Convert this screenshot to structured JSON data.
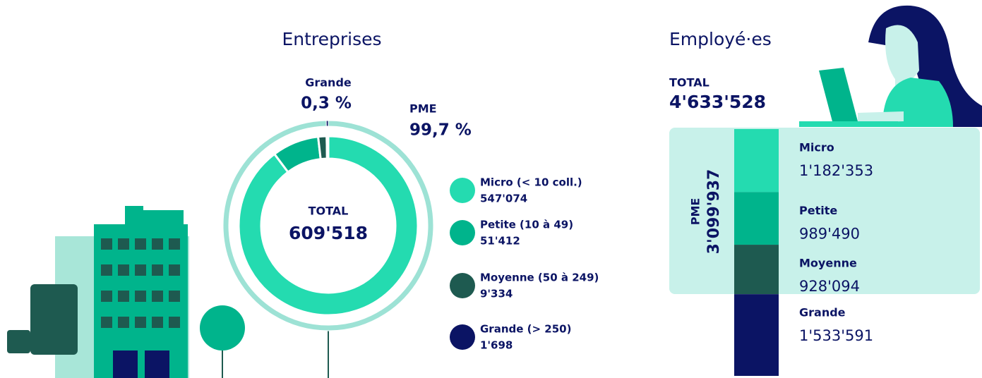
{
  "chart_data": [
    {
      "type": "donut",
      "title": "Entreprises",
      "center_caption": "TOTAL",
      "center_label": "609'518",
      "categories": [
        "Micro (< 10 coll.)",
        "Petite (10 à 49)",
        "Moyenne (50 à 249)",
        "Grande (> 250)"
      ],
      "values": [
        547074,
        51412,
        9334,
        1698
      ],
      "value_labels": [
        "547'074",
        "51'412",
        "9'334",
        "1'698"
      ],
      "colors": [
        "#24dbb0",
        "#00b48c",
        "#1e5a50",
        "#0b1464"
      ],
      "outer_ring": {
        "categories": [
          "PME",
          "Grande"
        ],
        "values": [
          99.7,
          0.3
        ],
        "value_labels": [
          "99,7 %",
          "0,3 %"
        ],
        "colors": [
          "#9de2d5",
          "#0b1464"
        ]
      }
    },
    {
      "type": "stacked_bar",
      "title": "Employé·es",
      "total_caption": "TOTAL",
      "total_label": "4'633'528",
      "categories": [
        "Micro",
        "Petite",
        "Moyenne",
        "Grande"
      ],
      "values": [
        1182353,
        989490,
        928094,
        1533591
      ],
      "value_labels": [
        "1'182'353",
        "989'490",
        "928'094",
        "1'533'591"
      ],
      "colors": [
        "#24dbb0",
        "#00b48c",
        "#1e5a50",
        "#0b1464"
      ],
      "group": {
        "name": "PME",
        "value_label": "3'099'937"
      }
    }
  ]
}
